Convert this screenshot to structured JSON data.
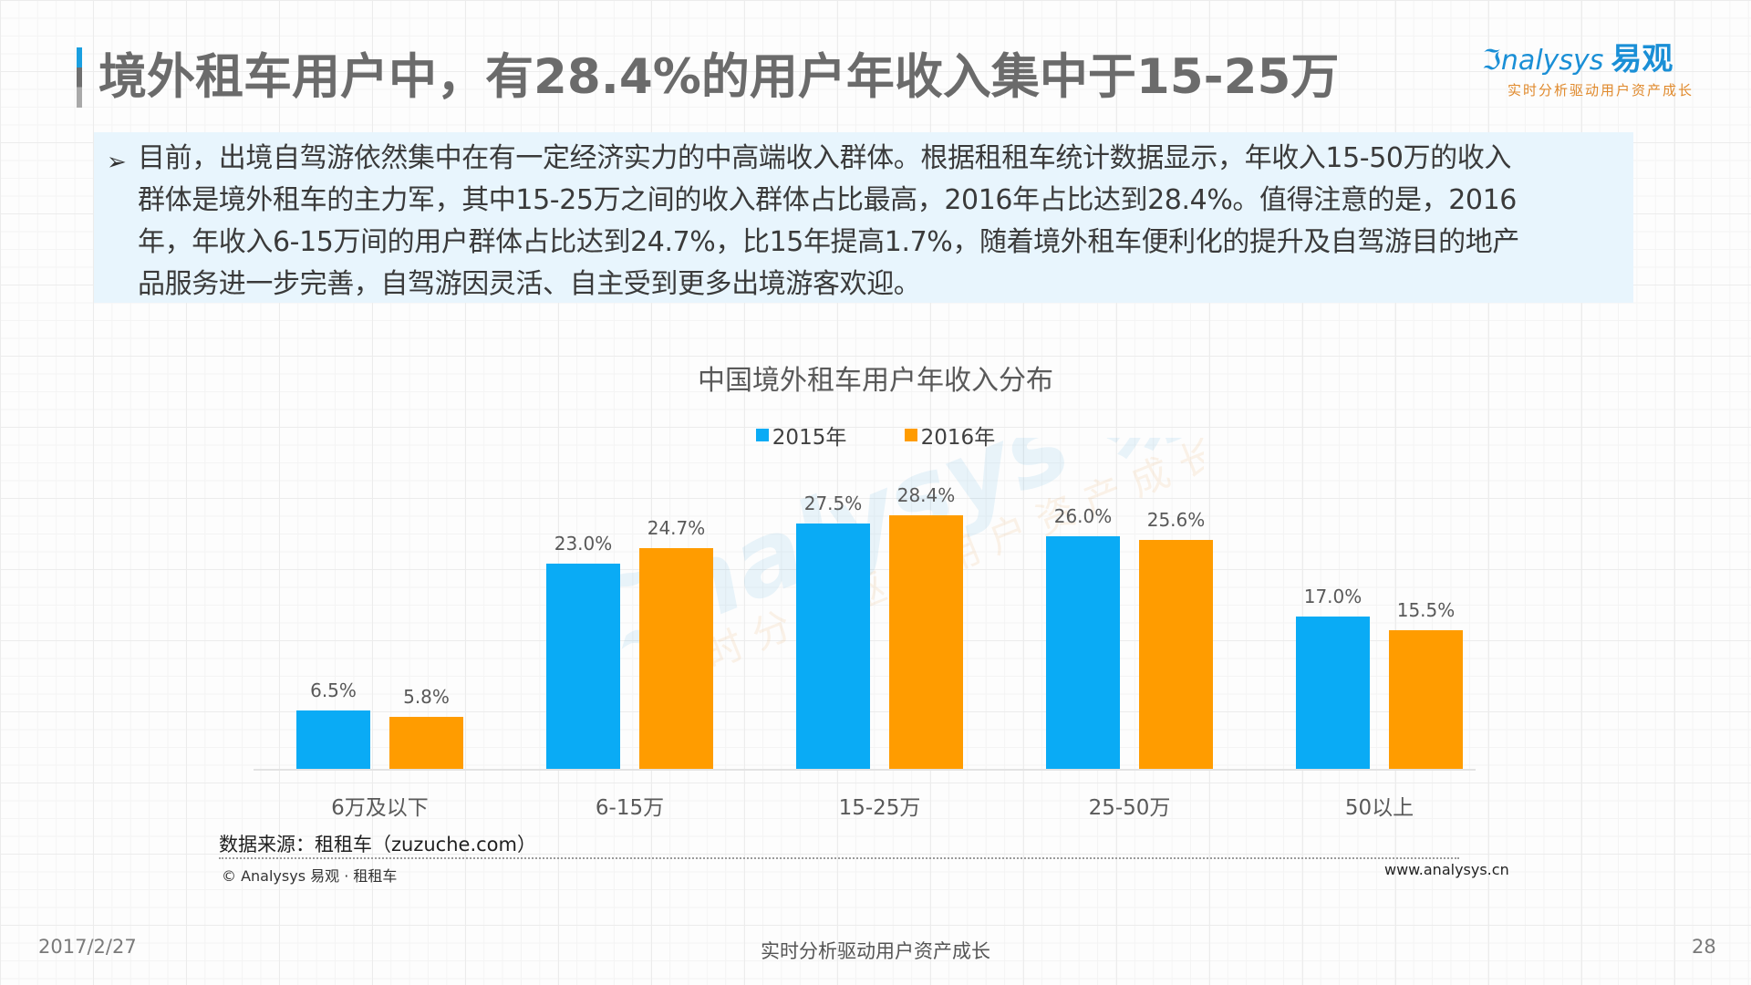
{
  "header": {
    "title": "境外租车用户中，有28.4%的用户年收入集中于15-25万",
    "logo": {
      "brand_en": "ℑnalysys",
      "brand_cn": "易观",
      "tagline": "实时分析驱动用户资产成长"
    }
  },
  "summary": {
    "bullet_icon": "➢",
    "lines": [
      "目前，出境自驾游依然集中在有一定经济实力的中高端收入群体。根据租租车统计数据显示，年收入15-50万的收入",
      "群体是境外租车的主力军，其中15-25万之间的收入群体占比最高，2016年占比达到28.4%。值得注意的是，2016",
      "年，年收入6-15万间的用户群体占比达到24.7%，比15年提高1.7%，随着境外租车便利化的提升及自驾游目的地产",
      "品服务进一步完善，自驾游因灵活、自主受到更多出境游客欢迎。"
    ]
  },
  "colors": {
    "series_2015": "#0aabf5",
    "series_2016": "#ff9c00",
    "accent": "#1a8fd6"
  },
  "chart_data": {
    "type": "bar",
    "title": "中国境外租车用户年收入分布",
    "categories": [
      "6万及以下",
      "6-15万",
      "15-25万",
      "25-50万",
      "50以上"
    ],
    "series": [
      {
        "name": "2015年",
        "values": [
          6.5,
          23.0,
          27.5,
          26.0,
          17.0
        ],
        "labels": [
          "6.5%",
          "23.0%",
          "27.5%",
          "26.0%",
          "17.0%"
        ],
        "color": "#0aabf5"
      },
      {
        "name": "2016年",
        "values": [
          5.8,
          24.7,
          28.4,
          25.6,
          15.5
        ],
        "labels": [
          "5.8%",
          "24.7%",
          "28.4%",
          "25.6%",
          "15.5%"
        ],
        "color": "#ff9c00"
      }
    ],
    "xlabel": "",
    "ylabel": "",
    "unit": "%",
    "ylim": [
      0,
      30
    ],
    "grid": false,
    "legend_position": "top",
    "data_labels": true
  },
  "watermark": {
    "text": "ℑnalysys 易观",
    "sub": "实时分析驱动用户资产成长"
  },
  "source": {
    "label": "数据来源：租租车（zuzuche.com）",
    "copyright": "© Analysys 易观 · 租租车",
    "url": "www.analysys.cn"
  },
  "footer": {
    "date": "2017/2/27",
    "slogan": "实时分析驱动用户资产成长",
    "page": "28"
  }
}
